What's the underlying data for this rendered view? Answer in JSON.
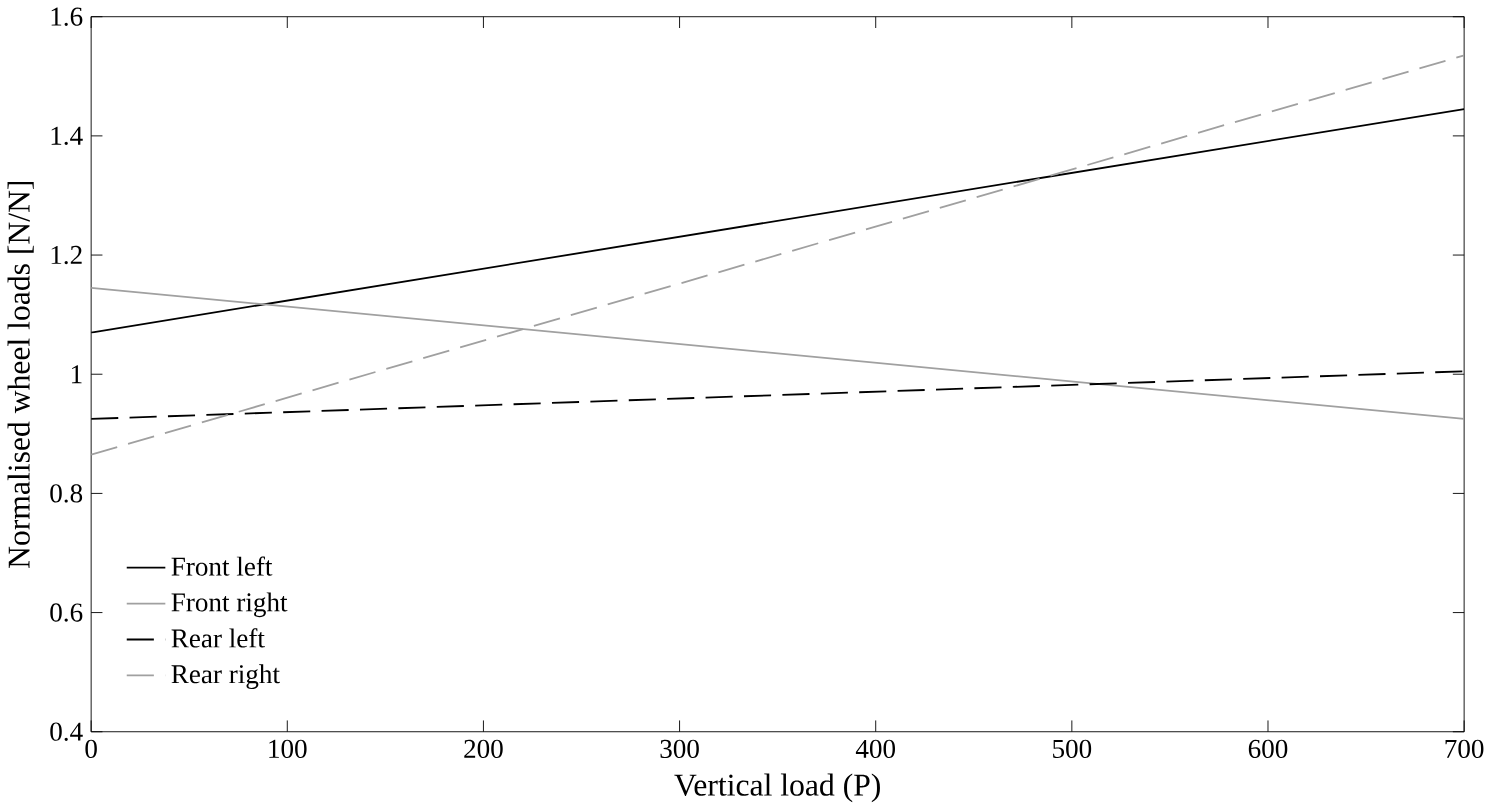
{
  "chart_data": {
    "type": "line",
    "xlabel": "Vertical load (P)",
    "ylabel": "Normalised wheel loads [N/N]",
    "x": [
      0,
      700
    ],
    "series": [
      {
        "name": "Front left",
        "color": "#000000",
        "values": [
          1.07,
          1.445
        ],
        "line_style": "solid"
      },
      {
        "name": "Front right",
        "color": "#a0a0a0",
        "values": [
          1.145,
          0.925
        ],
        "line_style": "solid"
      },
      {
        "name": "Rear left",
        "color": "#000000",
        "values": [
          0.925,
          1.005
        ],
        "line_style": "dashed"
      },
      {
        "name": "Rear right",
        "color": "#a0a0a0",
        "values": [
          0.865,
          1.535
        ],
        "line_style": "dashed"
      }
    ],
    "xlim": [
      0,
      700
    ],
    "xticks": [
      0,
      100,
      200,
      300,
      400,
      500,
      600,
      700
    ],
    "ylim": [
      0.4,
      1.6
    ],
    "yticks": [
      0.4,
      0.6,
      0.8,
      {
        "value": 1,
        "label": "1"
      },
      1.2,
      1.4,
      1.6
    ],
    "grid": false,
    "legend": "bottom left",
    "marker": "none"
  }
}
